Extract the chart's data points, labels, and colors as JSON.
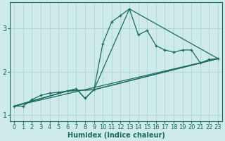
{
  "xlabel": "Humidex (Indice chaleur)",
  "background_color": "#ceeaea",
  "line_color": "#1a6b5e",
  "grid_color": "#b0d8d8",
  "xlim": [
    -0.5,
    23.5
  ],
  "ylim": [
    0.85,
    3.6
  ],
  "yticks": [
    1,
    2,
    3
  ],
  "xticks": [
    0,
    1,
    2,
    3,
    4,
    5,
    6,
    7,
    8,
    9,
    10,
    11,
    12,
    13,
    14,
    15,
    16,
    17,
    18,
    19,
    20,
    21,
    22,
    23
  ],
  "main_x": [
    0,
    1,
    2,
    3,
    4,
    5,
    6,
    7,
    8,
    9,
    10,
    11,
    12,
    13,
    14,
    15,
    16,
    17,
    18,
    19,
    20,
    21,
    22,
    23
  ],
  "main_y": [
    1.2,
    1.2,
    1.35,
    1.45,
    1.5,
    1.52,
    1.55,
    1.6,
    1.38,
    1.58,
    2.65,
    3.15,
    3.3,
    3.45,
    2.85,
    2.95,
    2.6,
    2.5,
    2.45,
    2.5,
    2.5,
    2.2,
    2.28,
    2.3
  ],
  "line1_x": [
    0,
    23
  ],
  "line1_y": [
    1.2,
    2.3
  ],
  "line2_x": [
    0,
    6,
    9,
    23
  ],
  "line2_y": [
    1.2,
    1.55,
    1.58,
    2.3
  ],
  "line3_x": [
    0,
    6,
    7,
    8,
    9,
    23
  ],
  "line3_y": [
    1.2,
    1.55,
    1.6,
    1.38,
    1.58,
    2.3
  ],
  "line4_x": [
    0,
    6,
    9,
    13,
    23
  ],
  "line4_y": [
    1.2,
    1.55,
    1.58,
    3.45,
    2.3
  ]
}
